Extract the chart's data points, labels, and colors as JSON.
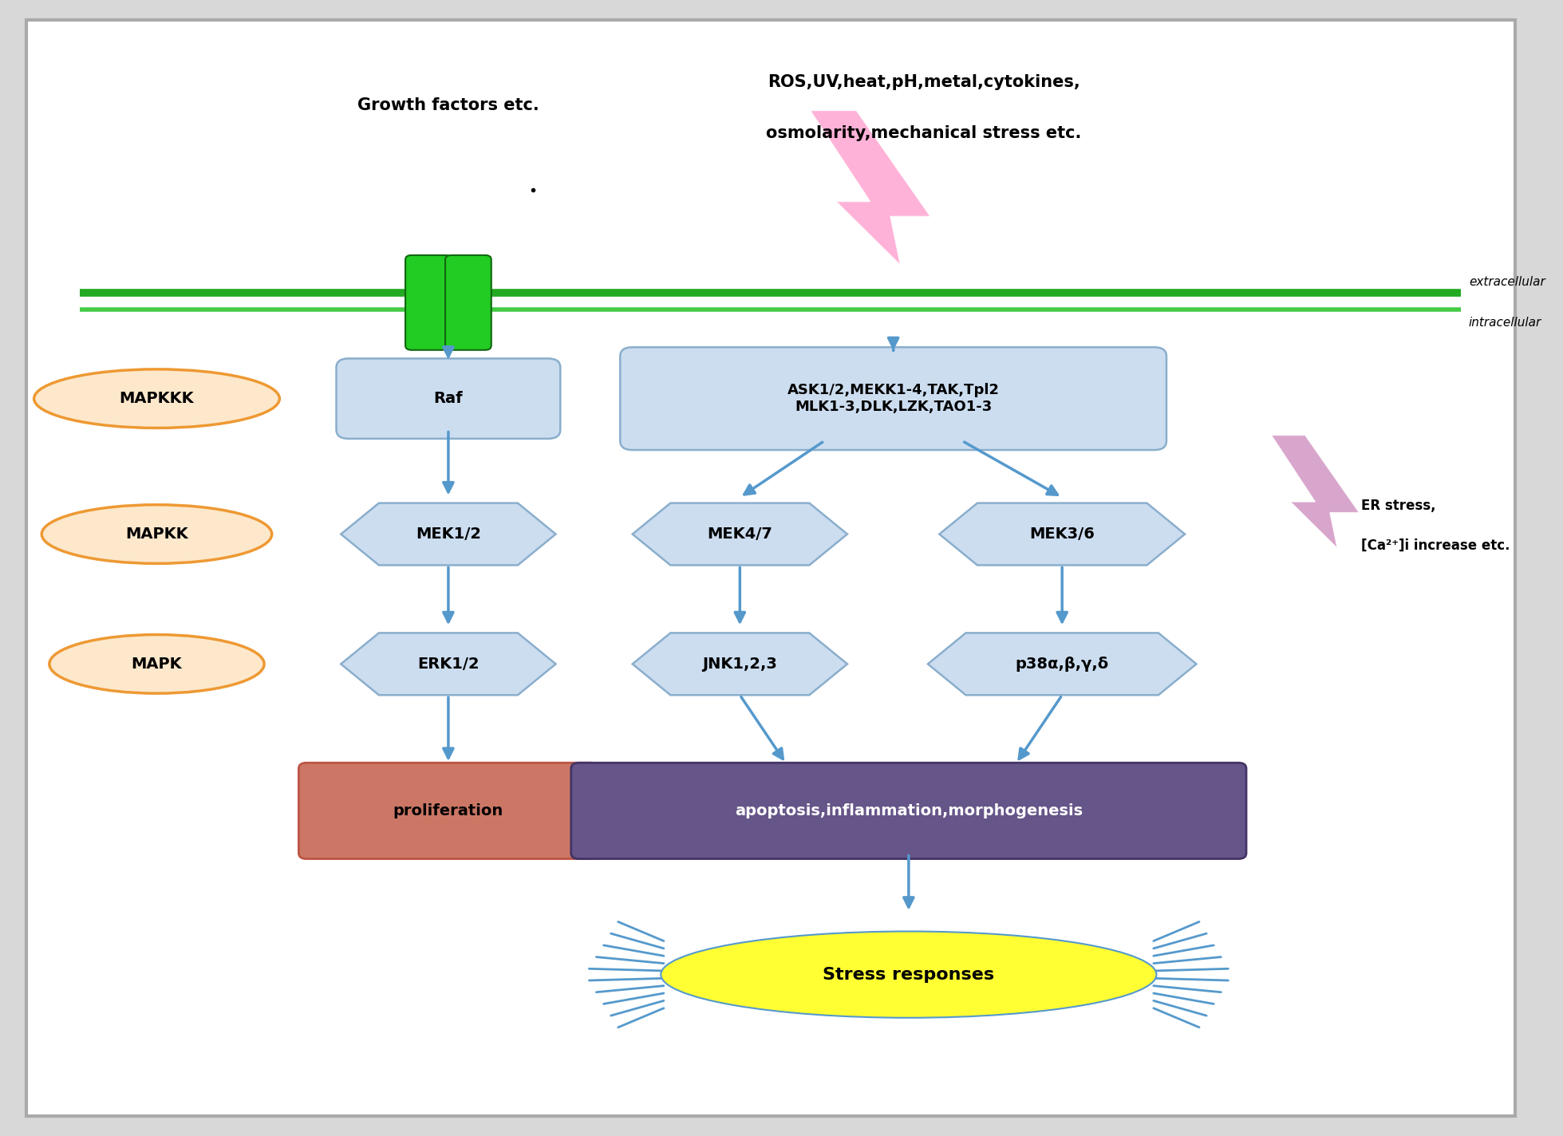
{
  "bg_color": "#d8d8d8",
  "panel_bg": "#ffffff",
  "membrane_color_1": "#22aa22",
  "membrane_color_2": "#44cc44",
  "extracellular_label": "extracellular",
  "intracellular_label": "intracellular",
  "growth_factors_text": "Growth factors etc.",
  "stress_text_line1": "ROS,UV,heat,pH,metal,cytokines,",
  "stress_text_line2": "osmolarity,mechanical stress etc.",
  "er_stress_line1": "ER stress,",
  "er_stress_line2": "[Ca²⁺]i increase etc.",
  "mapkkk_label": "MAPKKK",
  "mapkk_label": "MAPKK",
  "mapk_label": "MAPK",
  "raf_label": "Raf",
  "mek12_label": "MEK1/2",
  "erk12_label": "ERK1/2",
  "ask_label_1": "ASK1/2,MEKK1-4,TAK,Tpl2",
  "ask_label_2": "MLK1-3,DLK,LZK,TAO1-3",
  "mek47_label": "MEK4/7",
  "mek36_label": "MEK3/6",
  "jnk_label": "JNK1,2,3",
  "p38_label": "p38α,β,γ,δ",
  "proliferation_label": "proliferation",
  "apoptosis_label": "apoptosis,inflammation,morphogenesis",
  "stress_response_label": "Stress responses",
  "arrow_color": "#5599cc",
  "box_fill_blue": "#ccddf0",
  "box_edge_blue": "#8aaecc",
  "box_fill_orange": "#fde8cc",
  "box_edge_orange": "#ee9933",
  "box_edge_orange_dark": "#cc7711",
  "proliferation_fill": "#cc7766",
  "proliferation_edge": "#bb5544",
  "apoptosis_fill": "#665588",
  "apoptosis_edge": "#443366",
  "stress_fill": "#ffff33",
  "stress_spike_color": "#5599cc",
  "lightning_pink": "#ff99cc",
  "lightning_er": "#cc88bb"
}
